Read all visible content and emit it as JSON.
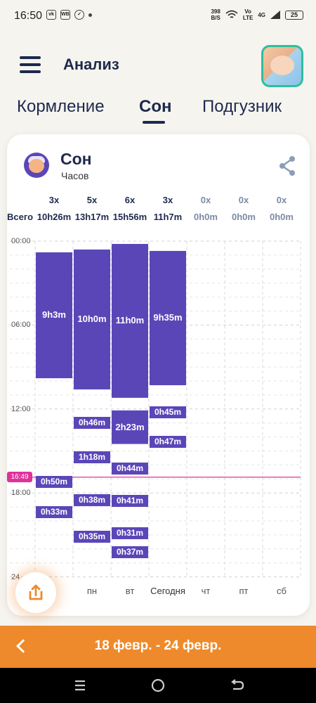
{
  "status": {
    "time": "16:50",
    "icons": [
      "vk-icon",
      "wb-icon",
      "check-icon"
    ],
    "net_speed": [
      "398",
      "B/S"
    ],
    "volte": [
      "Vo",
      "LTE"
    ],
    "signal": "4G",
    "battery": "25"
  },
  "appbar": {
    "title": "Анализ"
  },
  "tabs": [
    {
      "label": "Кормление",
      "active": false
    },
    {
      "label": "Сон",
      "active": true
    },
    {
      "label": "Подгузник",
      "active": false
    }
  ],
  "card": {
    "title": "Сон",
    "subtitle": "Часов",
    "total_label": "Всего",
    "columns": [
      {
        "count": "3x",
        "total": "10h26m"
      },
      {
        "count": "5x",
        "total": "13h17m"
      },
      {
        "count": "6x",
        "total": "15h56m"
      },
      {
        "count": "3x",
        "total": "11h7m"
      },
      {
        "count": "0x",
        "total": "0h0m"
      },
      {
        "count": "0x",
        "total": "0h0m"
      },
      {
        "count": "0x",
        "total": "0h0m"
      }
    ],
    "y_labels": [
      "00:00",
      "06:00",
      "12:00",
      "18:00",
      "24"
    ],
    "days": [
      "",
      "пн",
      "вт",
      "Сегодня",
      "чт",
      "пт",
      "сб"
    ],
    "now_label": "16:49"
  },
  "chart_data": {
    "type": "bar",
    "y_unit": "hours of day",
    "ylim": [
      0,
      24
    ],
    "now": 16.82,
    "accent": "#5b46b8",
    "now_color": "#e0319b",
    "columns": [
      {
        "day": "",
        "segments": [
          {
            "start": 0.8,
            "end": 9.8,
            "label": "9h3m"
          },
          {
            "start": 16.8,
            "end": 17.6,
            "label": "0h50m"
          },
          {
            "start": 19.1,
            "end": 19.6,
            "label": "0h33m"
          }
        ]
      },
      {
        "day": "пн",
        "segments": [
          {
            "start": 0.6,
            "end": 10.6,
            "label": "10h0m"
          },
          {
            "start": 12.6,
            "end": 13.3,
            "label": "0h46m"
          },
          {
            "start": 14.8,
            "end": 16.1,
            "label": "1h18m"
          },
          {
            "start": 18.2,
            "end": 18.8,
            "label": "0h38m"
          },
          {
            "start": 20.8,
            "end": 21.4,
            "label": "0h35m"
          }
        ]
      },
      {
        "day": "вт",
        "segments": [
          {
            "start": 0.2,
            "end": 11.2,
            "label": "11h0m"
          },
          {
            "start": 12.1,
            "end": 14.5,
            "label": "2h23m"
          },
          {
            "start": 15.9,
            "end": 16.6,
            "label": "0h44m"
          },
          {
            "start": 18.2,
            "end": 18.9,
            "label": "0h41m"
          },
          {
            "start": 20.6,
            "end": 21.1,
            "label": "0h31m"
          },
          {
            "start": 21.9,
            "end": 22.5,
            "label": "0h37m"
          }
        ]
      },
      {
        "day": "Сегодня",
        "segments": [
          {
            "start": 0.7,
            "end": 10.3,
            "label": "9h35m"
          },
          {
            "start": 11.8,
            "end": 12.6,
            "label": "0h45m"
          },
          {
            "start": 13.9,
            "end": 14.7,
            "label": "0h47m"
          }
        ]
      },
      {
        "day": "чт",
        "segments": []
      },
      {
        "day": "пт",
        "segments": []
      },
      {
        "day": "сб",
        "segments": []
      }
    ]
  },
  "footer": {
    "range": "18 февр. - 24 февр."
  }
}
